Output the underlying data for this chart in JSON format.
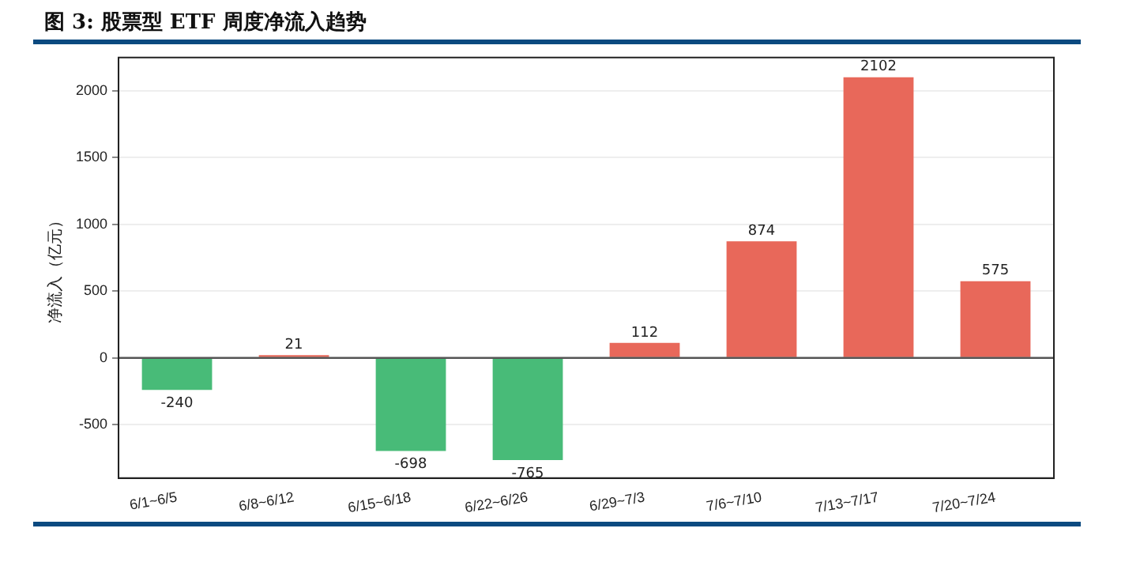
{
  "chart_data": {
    "type": "bar",
    "title": "图 3: 股票型 ETF 周度净流入趋势",
    "ylabel": "净流入（亿元）",
    "categories": [
      "6/1~6/5",
      "6/8~6/12",
      "6/15~6/18",
      "6/22~6/26",
      "6/29~7/3",
      "7/6~7/10",
      "7/13~7/17",
      "7/20~7/24"
    ],
    "values": [
      -240,
      21,
      -698,
      -765,
      112,
      874,
      2102,
      575
    ],
    "colors": [
      "#48bb78",
      "#e8685a",
      "#48bb78",
      "#48bb78",
      "#e8685a",
      "#e8685a",
      "#e8685a",
      "#e8685a"
    ],
    "ylim": [
      -900,
      2250
    ],
    "yticks": [
      -500,
      0,
      500,
      1000,
      1500,
      2000
    ],
    "ref_lines": [
      {
        "axis": "y",
        "value": 0,
        "color": "#555555"
      }
    ],
    "grid": "y",
    "data_labels": true,
    "legend": false
  }
}
